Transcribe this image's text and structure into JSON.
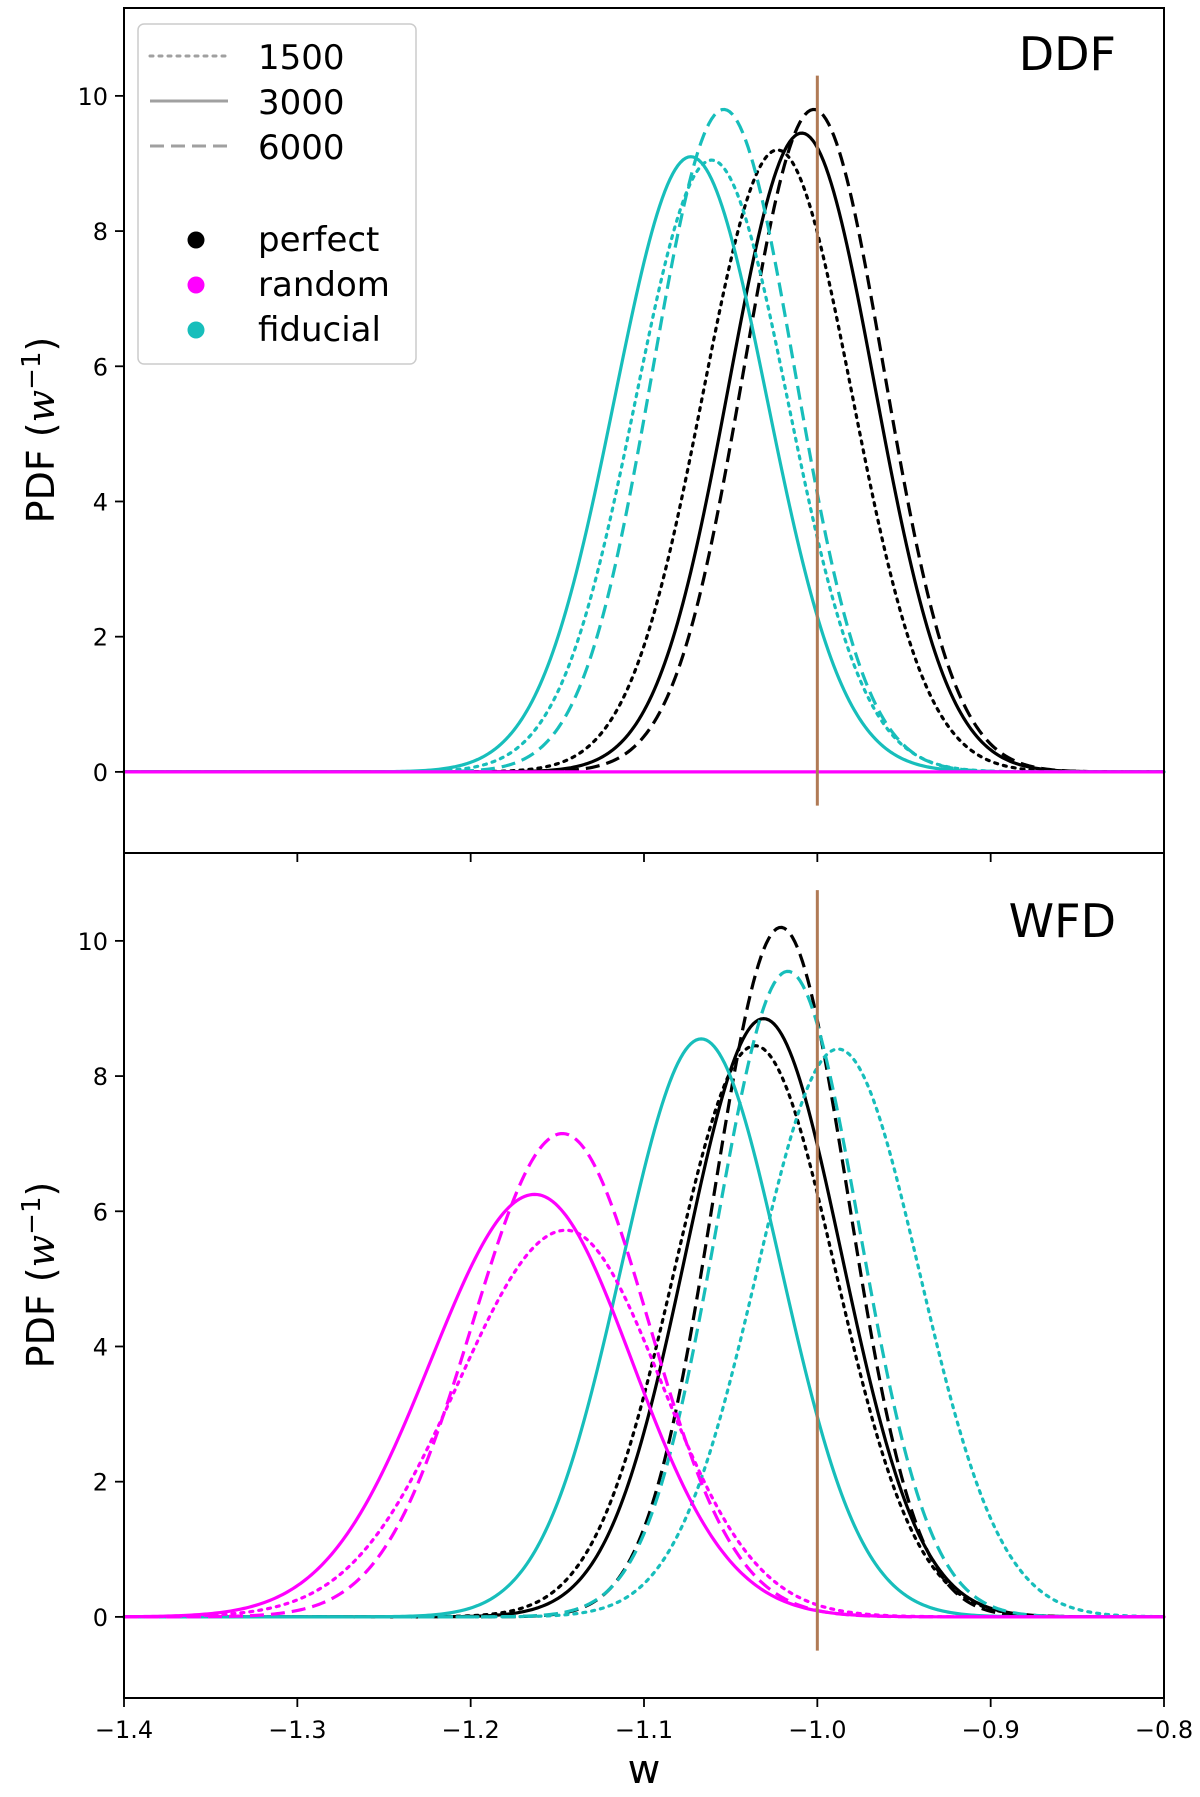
{
  "chart_data": [
    {
      "type": "line",
      "panel_label": "DDF",
      "ylabel": "PDF (w⁻¹)",
      "xlabel": "",
      "xlim": [
        -1.4,
        -0.8
      ],
      "ylim": [
        -1.2,
        11.3
      ],
      "yticks": [
        0,
        2,
        4,
        6,
        8,
        10
      ],
      "ytick_labels": [
        "0",
        "2",
        "4",
        "6",
        "8",
        "10"
      ],
      "xticks": [
        -1.4,
        -1.3,
        -1.2,
        -1.1,
        -1.0,
        -0.9,
        -0.8
      ],
      "xtick_labels": [],
      "reference_line": {
        "x": -1.0,
        "ymin": -0.5,
        "ymax": 10.3,
        "color": "#b07a55"
      },
      "series": [
        {
          "name": "perfect 1500",
          "classifier": "perfect",
          "sample": "1500",
          "style": "dotted",
          "color": "#000000",
          "curve": {
            "type": "gaussian",
            "mu": -1.023,
            "sigma": 0.0431,
            "peak": 9.2
          }
        },
        {
          "name": "perfect 3000",
          "classifier": "perfect",
          "sample": "3000",
          "style": "solid",
          "color": "#000000",
          "curve": {
            "type": "gaussian",
            "mu": -1.009,
            "sigma": 0.042,
            "peak": 9.45
          }
        },
        {
          "name": "perfect 6000",
          "classifier": "perfect",
          "sample": "6000",
          "style": "dashed",
          "color": "#000000",
          "curve": {
            "type": "gaussian",
            "mu": -1.002,
            "sigma": 0.0405,
            "peak": 9.8
          }
        },
        {
          "name": "fiducial 1500",
          "classifier": "fiducial",
          "sample": "1500",
          "style": "dotted",
          "color": "#17bebb",
          "curve": {
            "type": "gaussian",
            "mu": -1.061,
            "sigma": 0.044,
            "peak": 9.05
          }
        },
        {
          "name": "fiducial 3000",
          "classifier": "fiducial",
          "sample": "3000",
          "style": "solid",
          "color": "#17bebb",
          "curve": {
            "type": "gaussian",
            "mu": -1.073,
            "sigma": 0.044,
            "peak": 9.1
          }
        },
        {
          "name": "fiducial 6000",
          "classifier": "fiducial",
          "sample": "6000",
          "style": "dashed",
          "color": "#17bebb",
          "curve": {
            "type": "gaussian",
            "mu": -1.054,
            "sigma": 0.041,
            "peak": 9.8
          }
        },
        {
          "name": "random",
          "classifier": "random",
          "sample": "all",
          "style": "solid",
          "color": "#ff00ff",
          "curve": {
            "type": "flat",
            "value": 0
          }
        }
      ]
    },
    {
      "type": "line",
      "panel_label": "WFD",
      "ylabel": "PDF (w⁻¹)",
      "xlabel": "w",
      "xlim": [
        -1.4,
        -0.8
      ],
      "ylim": [
        -1.2,
        11.3
      ],
      "yticks": [
        0,
        2,
        4,
        6,
        8,
        10
      ],
      "ytick_labels": [
        "0",
        "2",
        "4",
        "6",
        "8",
        "10"
      ],
      "xticks": [
        -1.4,
        -1.3,
        -1.2,
        -1.1,
        -1.0,
        -0.9,
        -0.8
      ],
      "xtick_labels": [
        "−1.4",
        "−1.3",
        "−1.2",
        "−1.1",
        "−1.0",
        "−0.9",
        "−0.8"
      ],
      "reference_line": {
        "x": -1.0,
        "ymin": -0.5,
        "ymax": 10.75,
        "color": "#b07a55"
      },
      "series": [
        {
          "name": "perfect 1500",
          "classifier": "perfect",
          "sample": "1500",
          "style": "dotted",
          "color": "#000000",
          "curve": {
            "type": "gaussian",
            "mu": -1.036,
            "sigma": 0.0465,
            "peak": 8.45
          }
        },
        {
          "name": "perfect 3000",
          "classifier": "perfect",
          "sample": "3000",
          "style": "solid",
          "color": "#000000",
          "curve": {
            "type": "gaussian",
            "mu": -1.031,
            "sigma": 0.045,
            "peak": 8.85
          }
        },
        {
          "name": "perfect 6000",
          "classifier": "perfect",
          "sample": "6000",
          "style": "dashed",
          "color": "#000000",
          "curve": {
            "type": "gaussian",
            "mu": -1.021,
            "sigma": 0.039,
            "peak": 10.2
          }
        },
        {
          "name": "fiducial 1500",
          "classifier": "fiducial",
          "sample": "1500",
          "style": "dotted",
          "color": "#17bebb",
          "curve": {
            "type": "gaussian",
            "mu": -0.988,
            "sigma": 0.047,
            "peak": 8.4
          }
        },
        {
          "name": "fiducial 3000",
          "classifier": "fiducial",
          "sample": "3000",
          "style": "solid",
          "color": "#17bebb",
          "curve": {
            "type": "gaussian",
            "mu": -1.067,
            "sigma": 0.046,
            "peak": 8.55
          }
        },
        {
          "name": "fiducial 6000",
          "classifier": "fiducial",
          "sample": "6000",
          "style": "dashed",
          "color": "#17bebb",
          "curve": {
            "type": "gaussian",
            "mu": -1.017,
            "sigma": 0.041,
            "peak": 9.55
          }
        },
        {
          "name": "random 1500",
          "classifier": "random",
          "sample": "1500",
          "style": "dotted",
          "color": "#ff00ff",
          "curve": {
            "type": "gaussian",
            "mu": -1.145,
            "sigma_left": 0.062,
            "sigma_right": 0.055,
            "peak": 5.72
          }
        },
        {
          "name": "random 3000",
          "classifier": "random",
          "sample": "3000",
          "style": "solid",
          "color": "#ff00ff",
          "curve": {
            "type": "gaussian",
            "mu": -1.163,
            "sigma_left": 0.06,
            "sigma_right": 0.056,
            "peak": 6.25
          }
        },
        {
          "name": "random 6000",
          "classifier": "random",
          "sample": "6000",
          "style": "dashed",
          "color": "#ff00ff",
          "curve": {
            "type": "gaussian",
            "mu": -1.147,
            "sigma_left": 0.052,
            "sigma_right": 0.05,
            "peak": 7.15
          }
        }
      ]
    }
  ],
  "legend": {
    "placement": "top-left of upper panel",
    "line_styles": [
      {
        "label": "1500",
        "style": "dotted",
        "color": "#a0a0a0"
      },
      {
        "label": "3000",
        "style": "solid",
        "color": "#a0a0a0"
      },
      {
        "label": "6000",
        "style": "dashed",
        "color": "#a0a0a0"
      }
    ],
    "markers": [
      {
        "label": "perfect",
        "color": "#000000"
      },
      {
        "label": "random",
        "color": "#ff00ff"
      },
      {
        "label": "fiducial",
        "color": "#17bebb"
      }
    ]
  }
}
